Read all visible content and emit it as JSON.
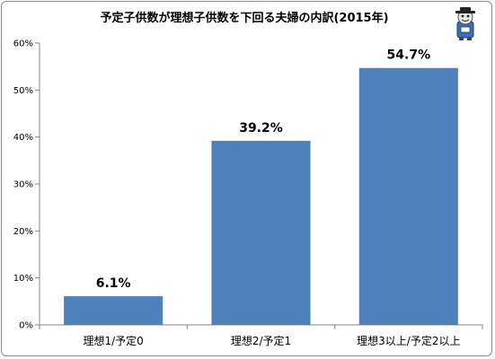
{
  "chart_data": {
    "type": "bar",
    "title": "予定子供数が理想子供数を下回る夫婦の内訳(2015年)",
    "categories": [
      "理想1/予定0",
      "理想2/予定1",
      "理想3以上/予定2以上"
    ],
    "values": [
      6.1,
      39.2,
      54.7
    ],
    "data_labels": [
      "6.1%",
      "39.2%",
      "54.7%"
    ],
    "ylim": [
      0,
      60
    ],
    "yticks": [
      0,
      10,
      20,
      30,
      40,
      50,
      60
    ],
    "ytick_labels": [
      "0%",
      "10%",
      "20%",
      "30%",
      "40%",
      "50%",
      "60%"
    ],
    "xlabel": "",
    "ylabel": "",
    "grid": false,
    "legend": "none",
    "bar_color": "#4f81bd"
  },
  "decorations": {
    "mascot": "mascot-icon"
  }
}
